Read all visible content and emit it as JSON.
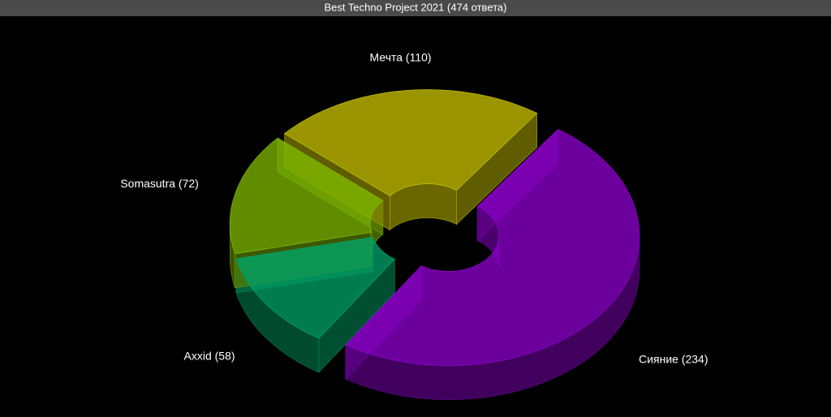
{
  "chart_data": {
    "type": "donut3d",
    "title": "Best Techno Project 2021 (474 ответа)",
    "values": [
      234,
      58,
      72,
      110
    ],
    "value_labels": [
      "Сияние (234)",
      "Axxid (58)",
      "Somasutra (72)",
      "Мечта (110)"
    ],
    "colors": [
      "#8a00c8",
      "#00a066",
      "#7cb400",
      "#c4be00"
    ]
  }
}
